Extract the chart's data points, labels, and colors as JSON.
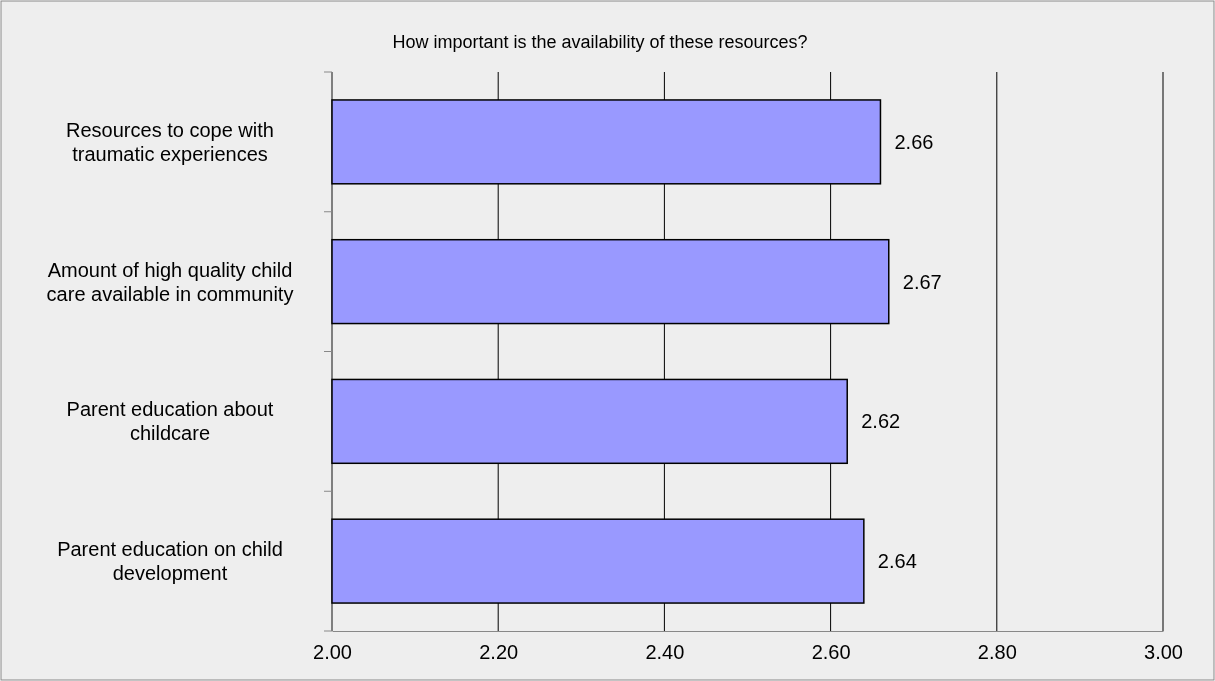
{
  "chart_data": {
    "type": "bar",
    "orientation": "horizontal",
    "title": "How important is the availability of these resources?",
    "categories": [
      "Resources to cope with traumatic experiences",
      "Amount of high quality child care available in community",
      "Parent education about childcare",
      "Parent education on child development"
    ],
    "values": [
      2.66,
      2.67,
      2.62,
      2.64
    ],
    "color": "#9999ff",
    "xlim": [
      2,
      3
    ],
    "xticks": [
      {
        "value": 2,
        "label": "2.00"
      },
      {
        "value": 2.2,
        "label": "2.20"
      },
      {
        "value": 2.4,
        "label": "2.40"
      },
      {
        "value": 2.6,
        "label": "2.60"
      },
      {
        "value": 2.8,
        "label": "2.80"
      },
      {
        "value": 3,
        "label": "3.00"
      }
    ],
    "grid": "x",
    "data_labels": true
  }
}
